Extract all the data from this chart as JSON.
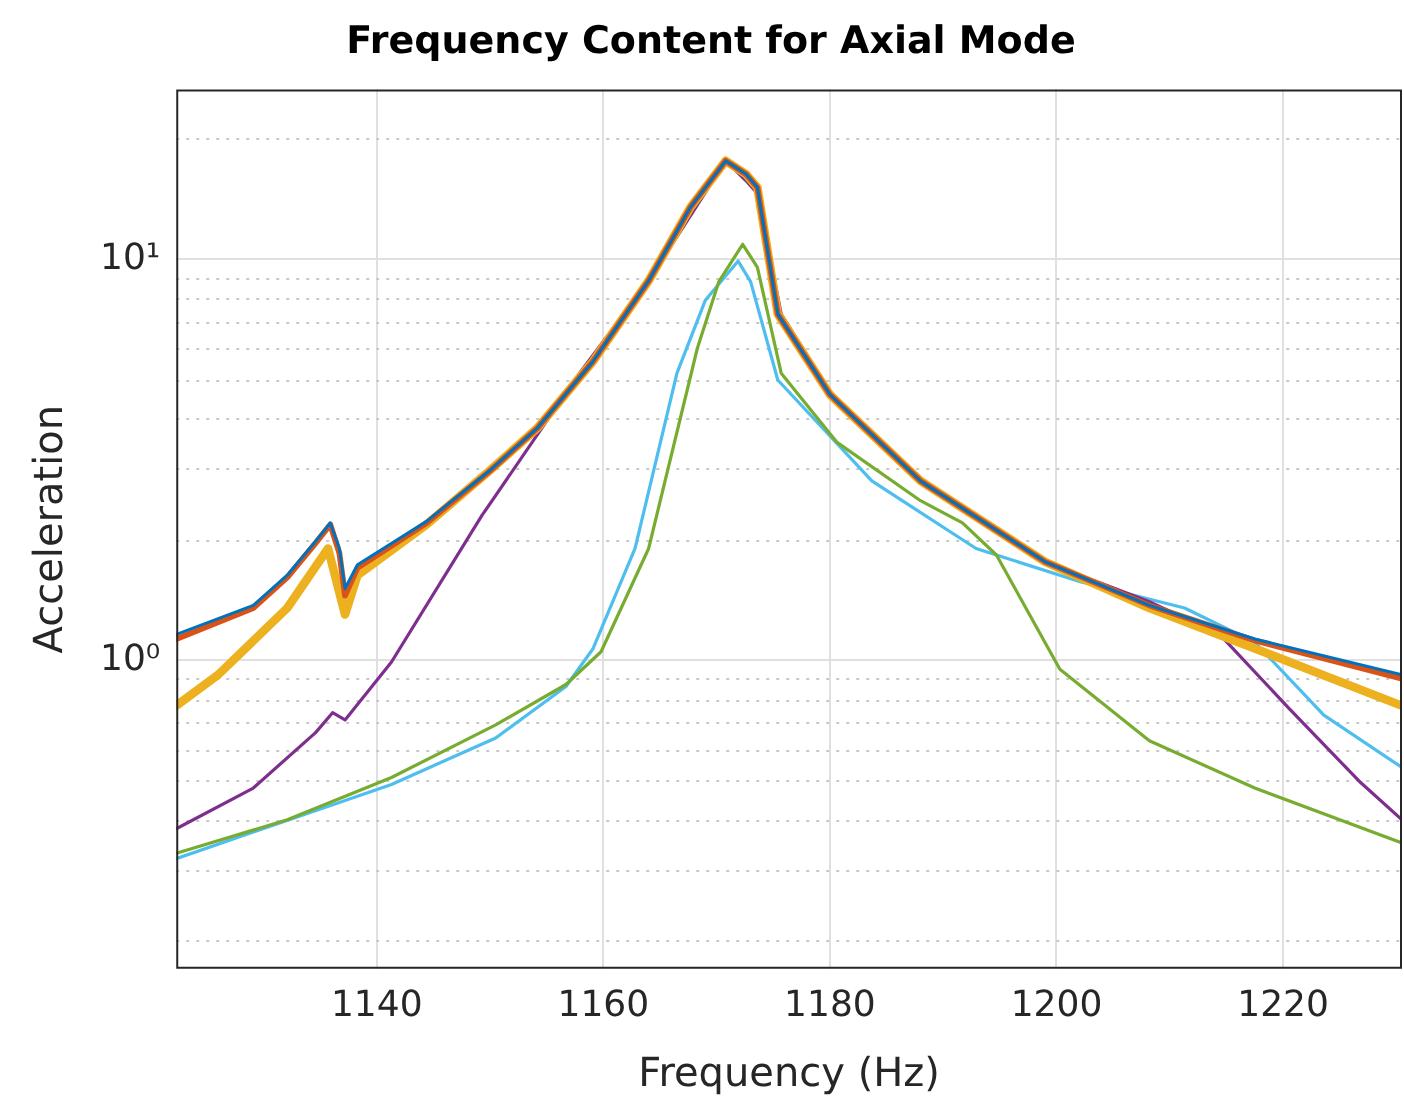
{
  "chart_data": {
    "type": "line",
    "title": "Frequency Content for Axial Mode",
    "xlabel": "Frequency (Hz)",
    "ylabel": "Acceleration",
    "log": "y",
    "grid": true,
    "legend": false,
    "marker": "none",
    "line_style": "solid",
    "xlim": [
      1122.3,
      1230.5
    ],
    "xticks": [
      1140,
      1160,
      1180,
      1200,
      1220
    ],
    "ylim": [
      0.17,
      26.5
    ],
    "yticks": [
      {
        "value": 0.2,
        "label": null
      },
      {
        "value": 0.3,
        "label": null
      },
      {
        "value": 0.4,
        "label": null
      },
      {
        "value": 0.5,
        "label": null
      },
      {
        "value": 0.6,
        "label": null
      },
      {
        "value": 0.7,
        "label": null
      },
      {
        "value": 0.8,
        "label": null
      },
      {
        "value": 0.9,
        "label": null
      },
      {
        "value": 1,
        "label": "10⁰"
      },
      {
        "value": 2,
        "label": null
      },
      {
        "value": 3,
        "label": null
      },
      {
        "value": 4,
        "label": null
      },
      {
        "value": 5,
        "label": null
      },
      {
        "value": 6,
        "label": null
      },
      {
        "value": 7,
        "label": null
      },
      {
        "value": 8,
        "label": null
      },
      {
        "value": 9,
        "label": null
      },
      {
        "value": 10,
        "label": "10¹"
      },
      {
        "value": 20,
        "label": null
      }
    ],
    "series": [
      {
        "color": "#0072bd",
        "x": [
          1122.3,
          1129.1,
          1132.1,
          1134.6,
          1135.9,
          1136.7,
          1137.2,
          1138.3,
          1144.4,
          1149.9,
          1154.2,
          1159.1,
          1164.0,
          1167.7,
          1170.8,
          1172.6,
          1173.6,
          1175.4,
          1180.0,
          1188.0,
          1199.0,
          1208.2,
          1217.5,
          1230.5
        ],
        "values": [
          1.16,
          1.37,
          1.63,
          1.98,
          2.2,
          1.9,
          1.51,
          1.73,
          2.22,
          2.96,
          3.8,
          5.57,
          8.84,
          13.5,
          17.6,
          16.3,
          15.1,
          7.3,
          4.6,
          2.8,
          1.76,
          1.37,
          1.13,
          0.92
        ]
      },
      {
        "color": "#d95319",
        "x": [
          1122.3,
          1129.1,
          1132.1,
          1134.6,
          1135.9,
          1136.7,
          1137.2,
          1138.3,
          1144.4,
          1149.9,
          1154.2,
          1159.1,
          1164.0,
          1167.7,
          1170.8,
          1172.6,
          1173.6,
          1175.4,
          1180.0,
          1188.0,
          1199.0,
          1208.2,
          1217.5,
          1230.5
        ],
        "values": [
          1.13,
          1.35,
          1.61,
          1.96,
          2.18,
          1.85,
          1.45,
          1.7,
          2.2,
          2.95,
          3.8,
          5.57,
          8.84,
          13.5,
          17.6,
          16.3,
          15.1,
          7.3,
          4.6,
          2.8,
          1.76,
          1.37,
          1.12,
          0.9
        ]
      },
      {
        "color": "#edb120",
        "x": [
          1122.3,
          1126.0,
          1132.1,
          1135.7,
          1137.2,
          1138.3,
          1144.4,
          1149.9,
          1154.2,
          1159.1,
          1164.0,
          1167.7,
          1170.8,
          1172.6,
          1173.6,
          1175.4,
          1180.0,
          1188.0,
          1199.0,
          1208.2,
          1217.5,
          1230.5
        ],
        "values": [
          0.77,
          0.92,
          1.35,
          1.9,
          1.3,
          1.63,
          2.18,
          2.96,
          3.8,
          5.57,
          8.84,
          13.5,
          17.6,
          16.3,
          15.1,
          7.3,
          4.6,
          2.8,
          1.76,
          1.35,
          1.07,
          0.77
        ]
      },
      {
        "color": "#7e2f8e",
        "x": [
          1122.3,
          1129.1,
          1134.6,
          1136.1,
          1137.2,
          1141.3,
          1149.3,
          1157.9,
          1164.0,
          1170.8,
          1172.6,
          1173.6,
          1175.7,
          1180.6,
          1188.0,
          1199.0,
          1208.2,
          1214.4,
          1220.5,
          1226.7,
          1230.5
        ],
        "values": [
          0.38,
          0.48,
          0.66,
          0.74,
          0.71,
          0.99,
          2.3,
          5.2,
          8.84,
          17.6,
          15.7,
          14.6,
          7.3,
          4.4,
          2.8,
          1.76,
          1.4,
          1.16,
          0.76,
          0.5,
          0.4
        ]
      },
      {
        "color": "#77ac30",
        "x": [
          1122.3,
          1132.1,
          1141.3,
          1150.5,
          1156.7,
          1159.8,
          1164.0,
          1168.3,
          1170.2,
          1172.3,
          1173.6,
          1175.7,
          1180.6,
          1188.0,
          1191.7,
          1194.7,
          1200.3,
          1208.2,
          1217.5,
          1230.5
        ],
        "values": [
          0.33,
          0.4,
          0.51,
          0.69,
          0.87,
          1.05,
          1.9,
          6.0,
          8.8,
          10.9,
          9.55,
          5.2,
          3.5,
          2.5,
          2.2,
          1.83,
          0.95,
          0.63,
          0.48,
          0.35
        ]
      },
      {
        "color": "#4dbeee",
        "x": [
          1122.3,
          1141.3,
          1150.5,
          1156.7,
          1159.1,
          1162.8,
          1166.5,
          1169.0,
          1171.9,
          1173.0,
          1175.4,
          1183.7,
          1192.9,
          1202.1,
          1211.3,
          1217.5,
          1223.6,
          1230.5
        ],
        "values": [
          0.32,
          0.49,
          0.64,
          0.86,
          1.07,
          1.9,
          5.2,
          7.9,
          9.9,
          8.8,
          5.0,
          2.8,
          1.9,
          1.57,
          1.35,
          1.11,
          0.73,
          0.54
        ]
      }
    ]
  }
}
